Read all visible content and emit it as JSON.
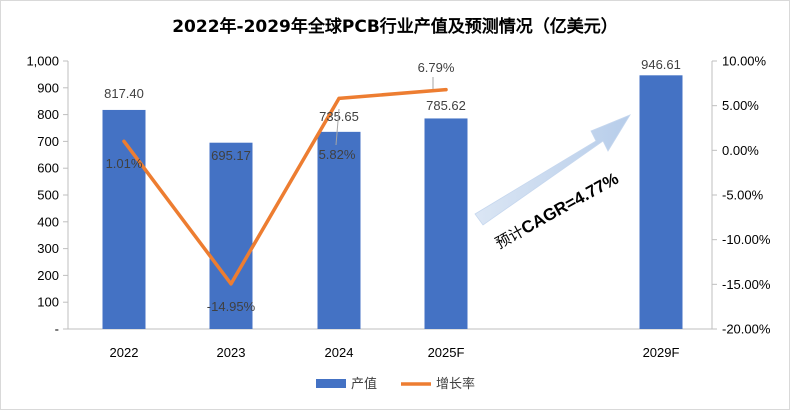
{
  "chart_data": {
    "type": "bar",
    "title": "2022年-2029年全球PCB行业产值及预测情况（亿美元）",
    "categories": [
      "2022",
      "2023",
      "2024",
      "2025F",
      "2029F"
    ],
    "series": [
      {
        "name": "产值",
        "type": "bar",
        "axis": "left",
        "color": "#4472C4",
        "values": [
          817.4,
          695.17,
          735.65,
          785.62,
          946.61
        ],
        "labels": [
          "817.40",
          "695.17",
          "735.65",
          "785.62",
          "946.61"
        ]
      },
      {
        "name": "增长率",
        "type": "line",
        "axis": "right",
        "color": "#ED7D31",
        "values": [
          1.01,
          -14.95,
          5.82,
          6.79,
          null
        ],
        "labels": [
          "1.01%",
          "-14.95%",
          "5.82%",
          "6.79%",
          null
        ]
      }
    ],
    "y_left": {
      "min": 0,
      "max": 1000,
      "step": 100,
      "tick_labels": [
        "-",
        "100",
        "200",
        "300",
        "400",
        "500",
        "600",
        "700",
        "800",
        "900",
        "1,000"
      ]
    },
    "y_right": {
      "min": -20,
      "max": 10,
      "step": 5,
      "tick_labels": [
        "-20.00%",
        "-15.00%",
        "-10.00%",
        "-5.00%",
        "0.00%",
        "5.00%",
        "10.00%"
      ]
    },
    "annotation": {
      "prefix": "预计",
      "text": "CAGR=4.77%"
    },
    "legend_position": "bottom",
    "grid": false
  }
}
